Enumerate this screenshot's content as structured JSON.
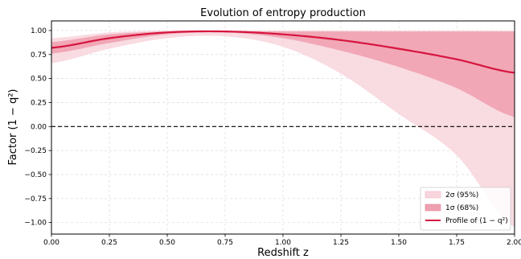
{
  "chart_data": {
    "type": "area",
    "title": "Evolution of entropy production",
    "xlabel": "Redshift z",
    "ylabel": "Factor (1 − q²)",
    "xlim": [
      0.0,
      2.0
    ],
    "ylim": [
      -1.12,
      1.1
    ],
    "xticks": [
      0.0,
      0.25,
      0.5,
      0.75,
      1.0,
      1.25,
      1.5,
      1.75,
      2.0
    ],
    "xtick_labels": [
      "0.00",
      "0.25",
      "0.50",
      "0.75",
      "1.00",
      "1.25",
      "1.50",
      "1.75",
      "2.00"
    ],
    "yticks": [
      1.0,
      0.75,
      0.5,
      0.25,
      0.0,
      -0.25,
      -0.5,
      -0.75,
      -1.0
    ],
    "ytick_labels": [
      "1.00",
      "0.75",
      "0.50",
      "0.25",
      "0.00",
      "−0.25",
      "−0.50",
      "−0.75",
      "−1.00"
    ],
    "grid": true,
    "reference_line": {
      "y": 0.0,
      "style": "dashed",
      "color": "#000000"
    },
    "legend": {
      "placement": "bottom-right",
      "entries": [
        {
          "label": "2σ (95%)",
          "kind": "band",
          "color": "#f8d5dd"
        },
        {
          "label": "1σ (68%)",
          "kind": "band",
          "color": "#f0a1b1"
        },
        {
          "label": "Profile of (1 − q²)",
          "kind": "line",
          "color": "#d6153f"
        }
      ]
    },
    "x": [
      0.0,
      0.25,
      0.5,
      0.75,
      1.0,
      1.25,
      1.5,
      1.75,
      2.0
    ],
    "series": [
      {
        "name": "Profile of (1 − q²)",
        "kind": "line",
        "color": "#d6153f",
        "values": [
          0.82,
          0.92,
          0.98,
          0.99,
          0.96,
          0.9,
          0.81,
          0.7,
          0.56
        ]
      },
      {
        "name": "1σ (68%)",
        "kind": "band",
        "color": "#f0a1b1",
        "upper": [
          0.88,
          0.96,
          0.99,
          0.995,
          0.99,
          0.99,
          0.99,
          0.99,
          0.99
        ],
        "lower": [
          0.76,
          0.87,
          0.96,
          0.98,
          0.92,
          0.79,
          0.62,
          0.4,
          0.1
        ]
      },
      {
        "name": "2σ (95%)",
        "kind": "band",
        "color": "#f8d5dd",
        "upper": [
          0.92,
          0.98,
          1.0,
          1.0,
          1.0,
          1.0,
          1.0,
          1.0,
          1.0
        ],
        "lower": [
          0.66,
          0.81,
          0.92,
          0.94,
          0.83,
          0.55,
          0.13,
          -0.3,
          -1.05
        ]
      }
    ]
  }
}
